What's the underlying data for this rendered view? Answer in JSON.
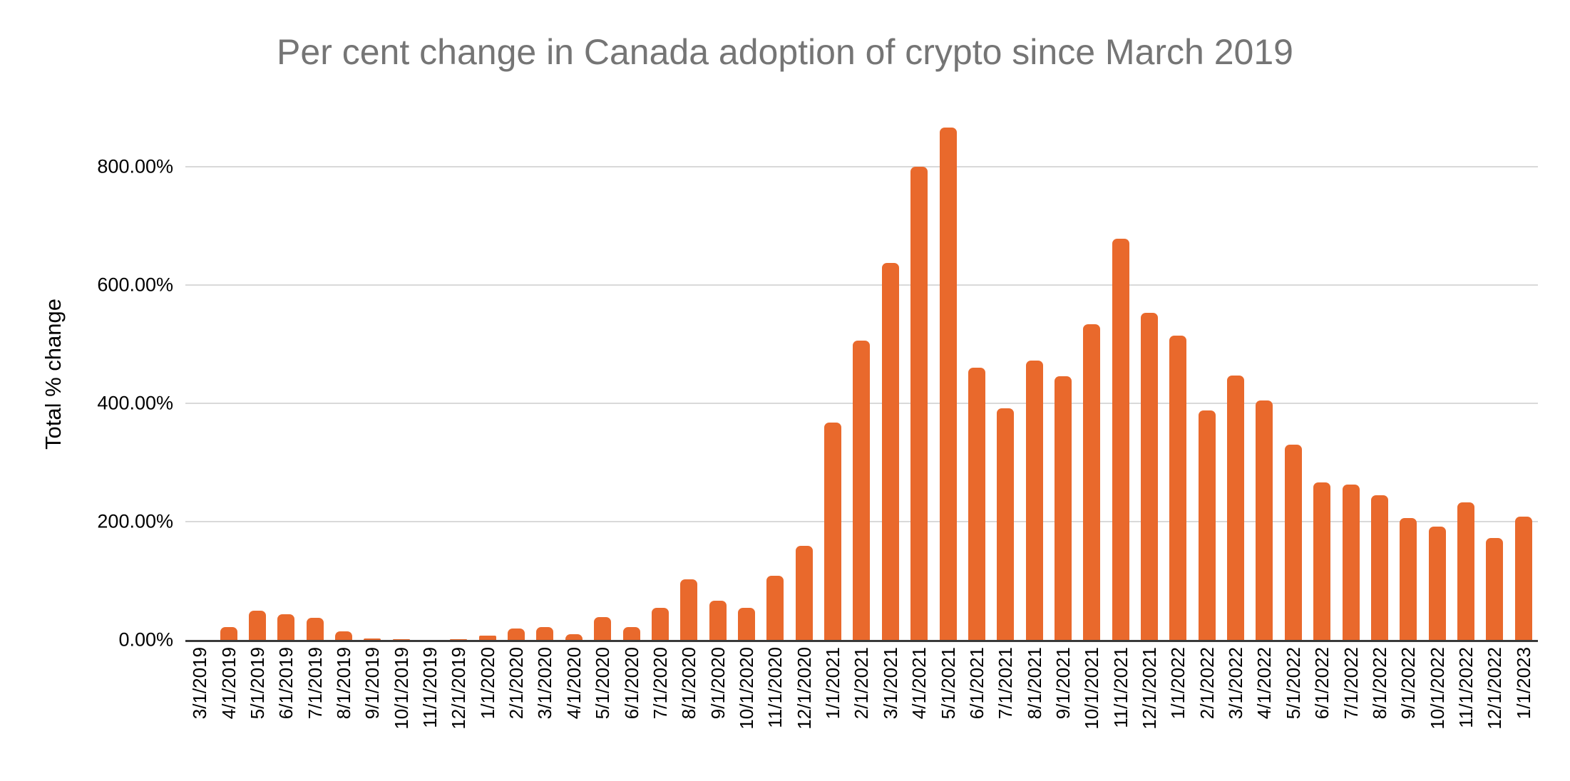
{
  "chart_data": {
    "type": "bar",
    "title": "Per cent change in Canada adoption of crypto since March 2019",
    "ylabel": "Total % change",
    "xlabel": "",
    "unit": "%",
    "ylim": [
      0,
      900
    ],
    "grid": true,
    "legend": "none",
    "y_ticks": [
      {
        "label": "0.00%",
        "value": 0
      },
      {
        "label": "200.00%",
        "value": 200
      },
      {
        "label": "400.00%",
        "value": 400
      },
      {
        "label": "600.00%",
        "value": 600
      },
      {
        "label": "800.00%",
        "value": 800
      }
    ],
    "categories": [
      "3/1/2019",
      "4/1/2019",
      "5/1/2019",
      "6/1/2019",
      "7/1/2019",
      "8/1/2019",
      "9/1/2019",
      "10/1/2019",
      "11/1/2019",
      "12/1/2019",
      "1/1/2020",
      "2/1/2020",
      "3/1/2020",
      "4/1/2020",
      "5/1/2020",
      "6/1/2020",
      "7/1/2020",
      "8/1/2020",
      "9/1/2020",
      "10/1/2020",
      "11/1/2020",
      "12/1/2020",
      "1/1/2021",
      "2/1/2021",
      "3/1/2021",
      "4/1/2021",
      "5/1/2021",
      "6/1/2021",
      "7/1/2021",
      "8/1/2021",
      "9/1/2021",
      "10/1/2021",
      "11/1/2021",
      "12/1/2021",
      "1/1/2022",
      "2/1/2022",
      "3/1/2022",
      "4/1/2022",
      "5/1/2022",
      "6/1/2022",
      "7/1/2022",
      "8/1/2022",
      "9/1/2022",
      "10/1/2022",
      "11/1/2022",
      "12/1/2022",
      "1/1/2023"
    ],
    "values": [
      0,
      22,
      49,
      43,
      37,
      15,
      2,
      1,
      0,
      1,
      7,
      19,
      22,
      10,
      39,
      22,
      54,
      102,
      66,
      54,
      109,
      159,
      368,
      506,
      637,
      800,
      866,
      460,
      391,
      472,
      446,
      534,
      678,
      553,
      515,
      388,
      447,
      405,
      330,
      266,
      263,
      244,
      206,
      191,
      233,
      172,
      208
    ],
    "colors": {
      "bar": "#e9692c",
      "title_text": "#757575",
      "axis_text": "#000000",
      "axis_line": "#3a3a3a",
      "gridline": "#d9d9d9",
      "background": "#ffffff"
    }
  }
}
